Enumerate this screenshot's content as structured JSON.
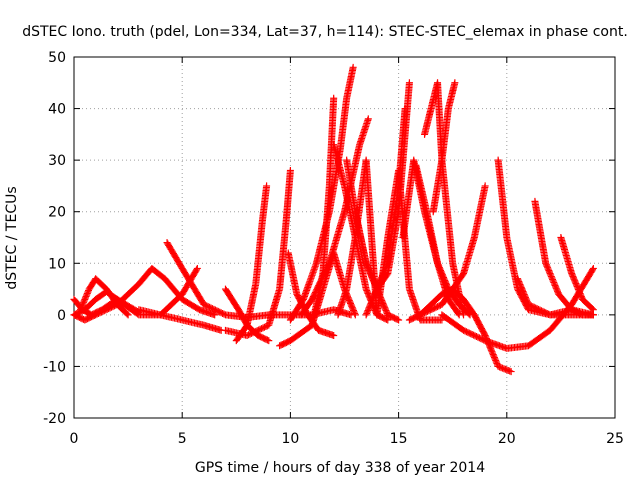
{
  "chart_data": {
    "type": "scatter",
    "title": "dSTEC Iono. truth (pdel, Lon=334, Lat=37, h=114): STEC-STEC_elemax in phase cont.",
    "xlabel": "GPS time / hours of day 338 of year 2014",
    "ylabel": "dSTEC  / TECUs",
    "xlim": [
      0,
      25
    ],
    "ylim": [
      -20,
      50
    ],
    "xticks": [
      0,
      5,
      10,
      15,
      20,
      25
    ],
    "yticks": [
      -20,
      -10,
      0,
      10,
      20,
      30,
      40,
      50
    ],
    "grid": true,
    "marker": "plus",
    "color": "#ff0000",
    "series": [
      {
        "x": [
          0.0,
          0.5,
          1.0,
          2.0,
          3.0,
          3.6,
          4.2,
          5.0,
          5.8,
          6.5
        ],
        "y": [
          0,
          -1,
          0,
          2,
          6,
          9,
          7,
          3,
          1,
          0
        ]
      },
      {
        "x": [
          0.0,
          0.4,
          0.8,
          1.3,
          2.0,
          3.0
        ],
        "y": [
          3,
          1,
          0,
          1,
          3,
          0.5
        ]
      },
      {
        "x": [
          0.3,
          0.7,
          1.0,
          1.5,
          2.0,
          2.5
        ],
        "y": [
          1,
          5,
          7,
          5,
          2,
          0
        ]
      },
      {
        "x": [
          0.0,
          0.5,
          1.0,
          1.5,
          2.0,
          3.0,
          4.0,
          5.0,
          5.7
        ],
        "y": [
          0,
          1,
          3,
          4.5,
          3,
          0,
          0,
          4,
          9
        ]
      },
      {
        "x": [
          4.3,
          5.0,
          6.0,
          7.0,
          8.0,
          9.0,
          10.0,
          11.0,
          12.0,
          12.8
        ],
        "y": [
          14,
          9,
          2,
          0,
          -0.5,
          0,
          0,
          0,
          1,
          0
        ]
      },
      {
        "x": [
          3.0,
          4.0,
          5.0,
          6.0,
          6.8
        ],
        "y": [
          1,
          0,
          -1,
          -2,
          -3
        ]
      },
      {
        "x": [
          7.0,
          7.6,
          8.0,
          8.5,
          9.0
        ],
        "y": [
          5,
          1,
          -2,
          -4,
          -5
        ]
      },
      {
        "x": [
          7.5,
          8.0,
          8.4,
          8.7,
          8.9
        ],
        "y": [
          -5,
          -2,
          6,
          18,
          25
        ]
      },
      {
        "x": [
          7.0,
          8.0,
          9.0,
          9.5,
          9.8,
          10.0
        ],
        "y": [
          -3,
          -4,
          -2,
          5,
          18,
          28
        ]
      },
      {
        "x": [
          9.9,
          10.3,
          10.8,
          11.3,
          12.0
        ],
        "y": [
          12,
          4,
          0,
          -3,
          -4
        ]
      },
      {
        "x": [
          9.5,
          10.0,
          11.0,
          11.5,
          11.8,
          12.0
        ],
        "y": [
          -6,
          -5,
          -2,
          8,
          25,
          42
        ]
      },
      {
        "x": [
          10.0,
          10.6,
          11.2,
          11.8,
          12.3,
          12.6,
          12.9
        ],
        "y": [
          -1,
          3,
          10,
          20,
          32,
          42,
          48
        ]
      },
      {
        "x": [
          10.5,
          11.0,
          11.8,
          12.5,
          13.2,
          13.6
        ],
        "y": [
          0,
          3,
          10,
          20,
          33,
          38
        ]
      },
      {
        "x": [
          11.0,
          11.5,
          12.0,
          12.5,
          13.0
        ],
        "y": [
          -2,
          5,
          12,
          5,
          0
        ]
      },
      {
        "x": [
          12.0,
          12.5,
          13.0,
          13.5,
          14.0,
          14.5
        ],
        "y": [
          33,
          25,
          15,
          5,
          0,
          -1
        ]
      },
      {
        "x": [
          12.6,
          13.0,
          13.5,
          14.0,
          14.5,
          15.0
        ],
        "y": [
          30,
          20,
          10,
          5,
          0,
          -1
        ]
      },
      {
        "x": [
          12.2,
          12.6,
          13.0,
          13.5,
          14.0
        ],
        "y": [
          0,
          5,
          15,
          30,
          0
        ]
      },
      {
        "x": [
          13.0,
          13.5,
          14.0,
          14.5,
          15.0,
          15.5
        ],
        "y": [
          20,
          10,
          5,
          8,
          20,
          45
        ]
      },
      {
        "x": [
          13.5,
          14.0,
          14.5,
          15.0,
          15.3
        ],
        "y": [
          0,
          5,
          10,
          25,
          40
        ]
      },
      {
        "x": [
          14.0,
          14.5,
          15.0,
          15.5,
          16.0,
          17.0
        ],
        "y": [
          0,
          15,
          28,
          5,
          -1,
          -1
        ]
      },
      {
        "x": [
          15.2,
          15.7,
          16.2,
          16.8,
          17.3,
          17.8
        ],
        "y": [
          15,
          30,
          20,
          10,
          3,
          0
        ]
      },
      {
        "x": [
          15.8,
          16.3,
          16.8,
          17.3,
          17.8,
          18.3
        ],
        "y": [
          29,
          20,
          10,
          5,
          2,
          0
        ]
      },
      {
        "x": [
          15.5,
          16.0,
          16.5,
          17.0,
          17.5,
          18.0,
          18.5,
          19.0,
          19.6,
          20.2
        ],
        "y": [
          -1,
          0,
          2,
          4,
          5,
          3,
          0,
          -4,
          -10,
          -11
        ]
      },
      {
        "x": [
          16.2,
          16.5,
          16.8,
          17.0,
          17.5,
          18.0
        ],
        "y": [
          35,
          40,
          45,
          30,
          10,
          0
        ]
      },
      {
        "x": [
          16.6,
          17.0,
          17.3,
          17.6
        ],
        "y": [
          20,
          30,
          40,
          45
        ]
      },
      {
        "x": [
          16.0,
          17.0,
          18.0,
          18.5,
          19.0
        ],
        "y": [
          0,
          2,
          8,
          15,
          25
        ]
      },
      {
        "x": [
          17.0,
          18.0,
          19.0,
          20.0,
          21.0,
          22.0,
          23.0,
          24.0
        ],
        "y": [
          0,
          -3,
          -5,
          -6.5,
          -6,
          -3,
          2,
          9
        ]
      },
      {
        "x": [
          19.6,
          20.0,
          20.5,
          21.0,
          22.0,
          23.0,
          24.0
        ],
        "y": [
          30,
          15,
          5,
          1,
          0,
          0,
          0
        ]
      },
      {
        "x": [
          20.5,
          21.0,
          22.0,
          23.0,
          24.0
        ],
        "y": [
          7,
          2,
          0,
          1,
          0
        ]
      },
      {
        "x": [
          21.3,
          21.8,
          22.4,
          23.0,
          23.5,
          24.0
        ],
        "y": [
          22,
          10,
          4,
          1,
          0,
          0
        ]
      },
      {
        "x": [
          22.5,
          23.0,
          23.5,
          24.0
        ],
        "y": [
          15,
          8,
          3,
          1
        ]
      }
    ]
  }
}
